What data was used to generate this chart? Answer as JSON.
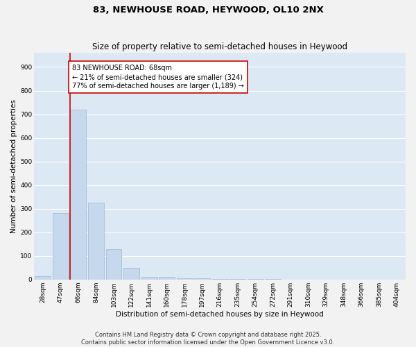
{
  "title_line1": "83, NEWHOUSE ROAD, HEYWOOD, OL10 2NX",
  "title_line2": "Size of property relative to semi-detached houses in Heywood",
  "xlabel": "Distribution of semi-detached houses by size in Heywood",
  "ylabel": "Number of semi-detached properties",
  "categories": [
    "28sqm",
    "47sqm",
    "66sqm",
    "84sqm",
    "103sqm",
    "122sqm",
    "141sqm",
    "160sqm",
    "178sqm",
    "197sqm",
    "216sqm",
    "235sqm",
    "254sqm",
    "272sqm",
    "291sqm",
    "310sqm",
    "329sqm",
    "348sqm",
    "366sqm",
    "385sqm",
    "404sqm"
  ],
  "values": [
    15,
    280,
    720,
    325,
    130,
    50,
    10,
    10,
    5,
    5,
    3,
    2,
    1,
    1,
    0,
    0,
    0,
    0,
    0,
    0,
    0
  ],
  "bar_color": "#c5d8ed",
  "bar_edge_color": "#a0b8d0",
  "vline_color": "#cc0000",
  "annotation_text": "83 NEWHOUSE ROAD: 68sqm\n← 21% of semi-detached houses are smaller (324)\n77% of semi-detached houses are larger (1,189) →",
  "annotation_box_color": "#ffffff",
  "annotation_box_edge_color": "#cc0000",
  "ylim": [
    0,
    960
  ],
  "yticks": [
    0,
    100,
    200,
    300,
    400,
    500,
    600,
    700,
    800,
    900
  ],
  "background_color": "#dde8f5",
  "grid_color": "#ffffff",
  "fig_background": "#f2f2f2",
  "footer_line1": "Contains HM Land Registry data © Crown copyright and database right 2025.",
  "footer_line2": "Contains public sector information licensed under the Open Government Licence v3.0.",
  "title_fontsize": 9.5,
  "subtitle_fontsize": 8.5,
  "axis_label_fontsize": 7.5,
  "tick_fontsize": 6.5,
  "annotation_fontsize": 7,
  "footer_fontsize": 6
}
